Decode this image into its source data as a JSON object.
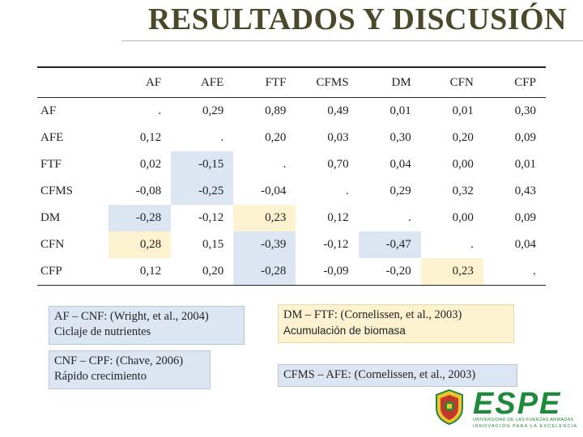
{
  "title": "RESULTADOS Y DISCUSIÓN",
  "matrix": {
    "columns": [
      "AF",
      "AFE",
      "FTF",
      "CFMS",
      "DM",
      "CFN",
      "CFP"
    ],
    "rows": [
      {
        "label": "AF",
        "cells": [
          ".",
          "0,29",
          "0,89",
          "0,49",
          "0,01",
          "0,01",
          "0,30"
        ],
        "shade": [
          "",
          "",
          "",
          "",
          "",
          "",
          ""
        ]
      },
      {
        "label": "AFE",
        "cells": [
          "0,12",
          ".",
          "0,20",
          "0,03",
          "0,30",
          "0,20",
          "0,09"
        ],
        "shade": [
          "",
          "",
          "",
          "",
          "",
          "",
          ""
        ]
      },
      {
        "label": "FTF",
        "cells": [
          "0,02",
          "-0,15",
          ".",
          "0,70",
          "0,04",
          "0,00",
          "0,01"
        ],
        "shade": [
          "",
          "blue",
          "",
          "",
          "",
          "",
          ""
        ]
      },
      {
        "label": "CFMS",
        "cells": [
          "-0,08",
          "-0,25",
          "-0,04",
          ".",
          "0,29",
          "0,32",
          "0,43"
        ],
        "shade": [
          "",
          "blue",
          "",
          "",
          "",
          "",
          ""
        ]
      },
      {
        "label": "DM",
        "cells": [
          "-0,28",
          "-0,12",
          "0,23",
          "0,12",
          ".",
          "0,00",
          "0,09"
        ],
        "shade": [
          "blue",
          "",
          "cream",
          "",
          "",
          "",
          ""
        ]
      },
      {
        "label": "CFN",
        "cells": [
          "0,28",
          "0,15",
          "-0,39",
          "-0,12",
          "-0,47",
          ".",
          "0,04"
        ],
        "shade": [
          "cream",
          "",
          "blue",
          "",
          "blue",
          "",
          ""
        ]
      },
      {
        "label": "CFP",
        "cells": [
          "0,12",
          "0,20",
          "-0,28",
          "-0,09",
          "-0,20",
          "0,23",
          "."
        ],
        "shade": [
          "",
          "",
          "blue",
          "",
          "",
          "cream",
          ""
        ]
      }
    ]
  },
  "notes": {
    "af_cnf": {
      "line1": "AF – CNF: (Wright, et al., 2004)",
      "line2": "Ciclaje de nutrientes"
    },
    "cnf_cpf": {
      "line1": "CNF – CPF: (Chave, 2006)",
      "line2": "Rápido crecimiento"
    },
    "dm_ftf": {
      "line1": "DM – FTF: (Cornelissen, et al., 2003)",
      "line2": "Acumulación de biomasa"
    },
    "cfms_afe": {
      "line1": "CFMS – AFE: (Cornelissen, et al., 2003)"
    }
  },
  "logo": {
    "name": "ESPE",
    "subtitle": "UNIVERSIDAD DE LAS FUERZAS ARMADAS",
    "tagline": "INNOVACIÓN PARA LA EXCELENCIA",
    "color": "#1f8a3c"
  },
  "colors": {
    "blue_highlight": "#dce6f2",
    "cream_highlight": "#fdf3d0"
  }
}
